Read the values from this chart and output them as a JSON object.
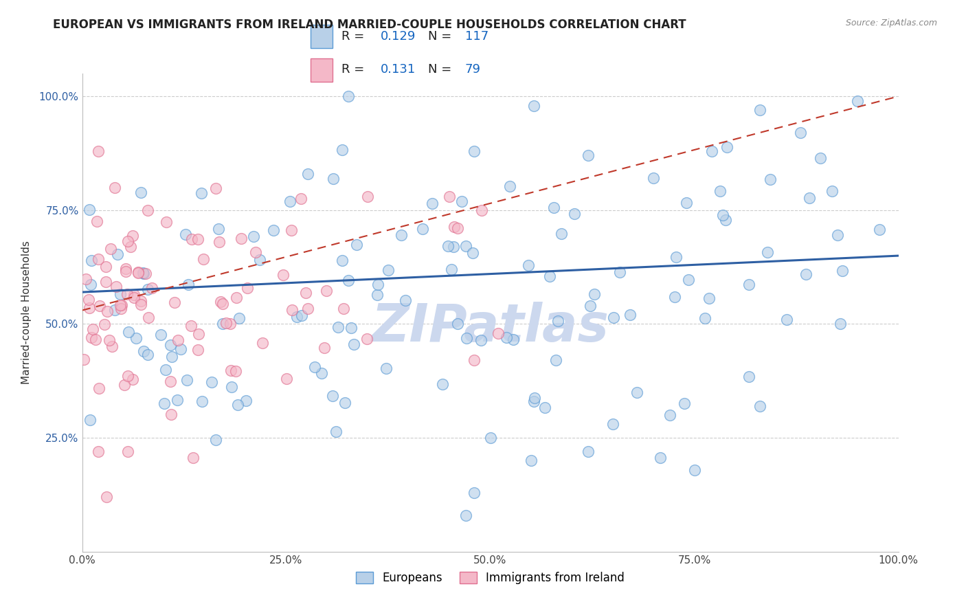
{
  "title": "EUROPEAN VS IMMIGRANTS FROM IRELAND MARRIED-COUPLE HOUSEHOLDS CORRELATION CHART",
  "source": "Source: ZipAtlas.com",
  "ylabel": "Married-couple Households",
  "xlim": [
    0,
    1
  ],
  "ylim": [
    0,
    1.05
  ],
  "xticks": [
    0,
    0.25,
    0.5,
    0.75,
    1.0
  ],
  "xticklabels": [
    "0.0%",
    "25.0%",
    "50.0%",
    "75.0%",
    "100.0%"
  ],
  "ytick_positions": [
    0.25,
    0.5,
    0.75,
    1.0
  ],
  "yticklabels": [
    "25.0%",
    "50.0%",
    "75.0%",
    "100.0%"
  ],
  "series1_label": "Europeans",
  "series1_color": "#b8d0e8",
  "series1_edge": "#5b9bd5",
  "series1_R": 0.129,
  "series1_N": 117,
  "series2_label": "Immigrants from Ireland",
  "series2_color": "#f4b8c8",
  "series2_edge": "#e07090",
  "series2_R": 0.131,
  "series2_N": 79,
  "trend1_color": "#2e5fa3",
  "trend2_color": "#c0392b",
  "legend_R_color": "#1565c0",
  "legend_N_color": "#1565c0",
  "watermark": "ZIPatlas",
  "watermark_color": "#ccd8ee",
  "background_color": "#ffffff",
  "grid_color": "#cccccc",
  "title_fontsize": 12,
  "seed": 7
}
